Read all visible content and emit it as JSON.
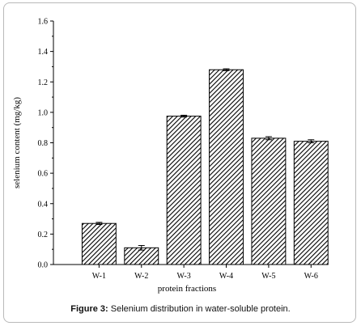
{
  "chart_data": {
    "type": "bar",
    "categories": [
      "W-1",
      "W-2",
      "W-3",
      "W-4",
      "W-5",
      "W-6"
    ],
    "values": [
      0.27,
      0.11,
      0.975,
      1.28,
      0.83,
      0.81
    ],
    "errors": [
      0.007,
      0.015,
      0.006,
      0.006,
      0.01,
      0.01
    ],
    "xlabel": "protein fractions",
    "ylabel": "selenium content (mg/kg)",
    "ylim": [
      0,
      1.6
    ],
    "yticks": [
      "0.0",
      "0.2",
      "0.4",
      "0.6",
      "0.8",
      "1.0",
      "1.2",
      "1.4",
      "1.6"
    ],
    "bar_fill": "hatched",
    "grid": false
  },
  "caption": {
    "label": "Figure 3:",
    "text": " Selenium distribution in water-soluble protein."
  }
}
